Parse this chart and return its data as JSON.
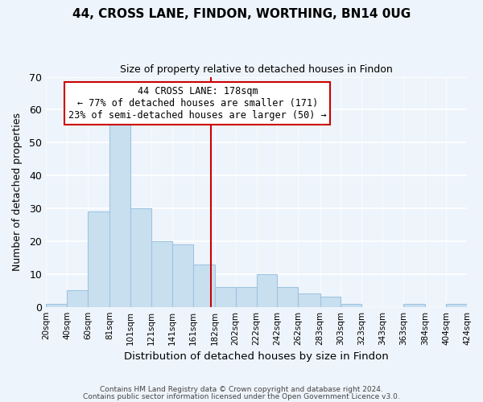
{
  "title": "44, CROSS LANE, FINDON, WORTHING, BN14 0UG",
  "subtitle": "Size of property relative to detached houses in Findon",
  "xlabel": "Distribution of detached houses by size in Findon",
  "ylabel": "Number of detached properties",
  "bin_edges": [
    20,
    40,
    60,
    81,
    101,
    121,
    141,
    161,
    182,
    202,
    222,
    242,
    262,
    283,
    303,
    323,
    343,
    363,
    384,
    404,
    424
  ],
  "bar_heights": [
    1,
    5,
    29,
    56,
    30,
    20,
    19,
    13,
    6,
    6,
    10,
    6,
    4,
    3,
    1,
    0,
    0,
    1,
    0,
    1
  ],
  "bar_color": "#c8dff0",
  "bar_edgecolor": "#a0c4e0",
  "vline_x": 178,
  "vline_color": "#cc0000",
  "annotation_title": "44 CROSS LANE: 178sqm",
  "annotation_line1": "← 77% of detached houses are smaller (171)",
  "annotation_line2": "23% of semi-detached houses are larger (50) →",
  "annotation_box_edgecolor": "#cc0000",
  "ylim": [
    0,
    70
  ],
  "xlim": [
    20,
    424
  ],
  "tick_labels": [
    "20sqm",
    "40sqm",
    "60sqm",
    "81sqm",
    "101sqm",
    "121sqm",
    "141sqm",
    "161sqm",
    "182sqm",
    "202sqm",
    "222sqm",
    "242sqm",
    "262sqm",
    "283sqm",
    "303sqm",
    "323sqm",
    "343sqm",
    "363sqm",
    "384sqm",
    "404sqm",
    "424sqm"
  ],
  "footer_line1": "Contains HM Land Registry data © Crown copyright and database right 2024.",
  "footer_line2": "Contains public sector information licensed under the Open Government Licence v3.0.",
  "bg_color": "#eef4fb",
  "plot_bg_color": "#eef4fb",
  "title_fontsize": 11,
  "subtitle_fontsize": 9
}
